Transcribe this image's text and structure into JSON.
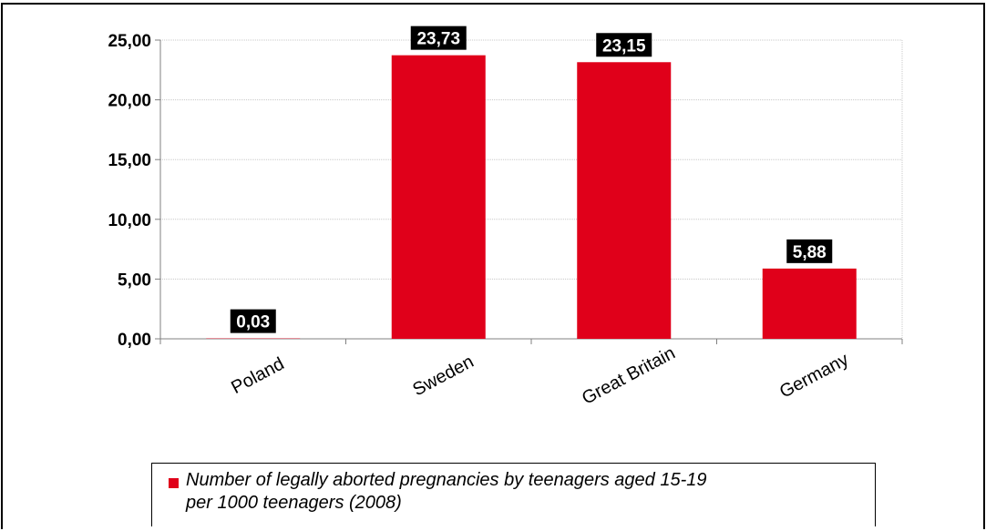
{
  "chart_data": {
    "type": "bar",
    "categories": [
      "Poland",
      "Sweden",
      "Great Britain",
      "Germany"
    ],
    "values": [
      0.03,
      23.73,
      23.15,
      5.88
    ],
    "value_labels": [
      "0,03",
      "23,73",
      "23,15",
      "5,88"
    ],
    "title": "",
    "xlabel": "",
    "ylabel": "",
    "ylim": [
      0,
      25
    ],
    "yticks": [
      0,
      5,
      10,
      15,
      20,
      25
    ],
    "ytick_labels": [
      "0,00",
      "5,00",
      "10,00",
      "15,00",
      "20,00",
      "25,00"
    ],
    "grid": true,
    "legend_position": "bottom",
    "series": [
      {
        "name": "Number of legally aborted pregnancies by teenagers aged 15-19\nper 1000 teenagers (2008)",
        "values": [
          0.03,
          23.73,
          23.15,
          5.88
        ]
      }
    ],
    "colors": {
      "bar": "#e0001a",
      "data_label_bg": "#000000",
      "data_label_text": "#ffffff",
      "gridline": "#c8c8c8"
    }
  }
}
